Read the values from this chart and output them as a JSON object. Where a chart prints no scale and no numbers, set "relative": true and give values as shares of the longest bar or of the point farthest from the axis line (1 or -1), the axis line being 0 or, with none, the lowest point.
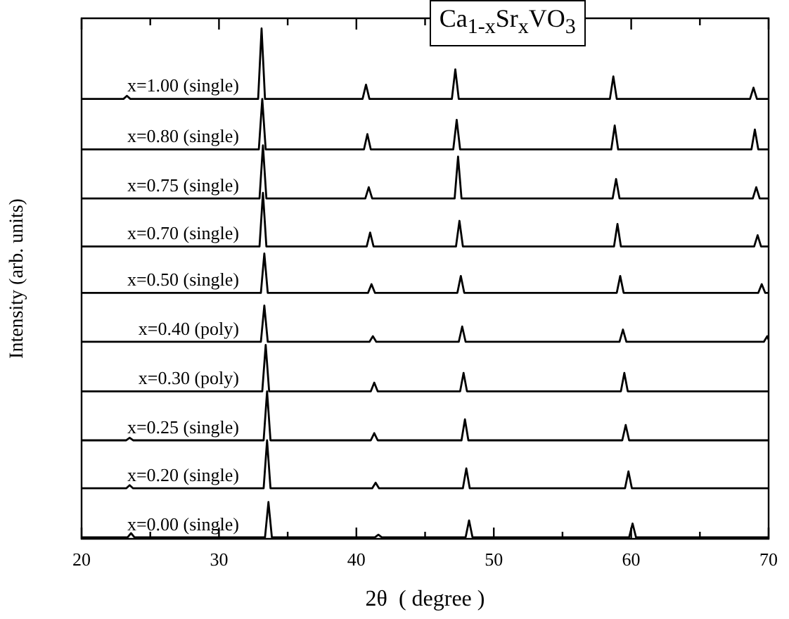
{
  "chart_data": {
    "type": "line",
    "title": "Ca$_{1-x}$Sr$_{x}$VO$_{3}$",
    "xlabel": "2θ  ( degree )",
    "ylabel": "Intensity (arb. units)",
    "relative": true,
    "xlim": [
      20,
      70
    ],
    "xticks": [
      20,
      {
        "value": 25,
        "label": null
      },
      30,
      {
        "value": 35,
        "label": null
      },
      40,
      {
        "value": 45,
        "label": null
      },
      50,
      {
        "value": 55,
        "label": null
      },
      60,
      {
        "value": 65,
        "label": null
      },
      70
    ],
    "grid": false,
    "marker": "none",
    "line_style": "solid",
    "series": [
      {
        "name": "x=1.00 (single)",
        "color": "#000000",
        "x": [
          20,
          23.05,
          23.3,
          23.55,
          32.85,
          33.1,
          33.35,
          40.45,
          40.7,
          40.95,
          46.95,
          47.2,
          47.45,
          58.45,
          58.7,
          58.95,
          68.65,
          68.9,
          69.15,
          70
        ],
        "values": [
          0.862,
          0.862,
          0.868,
          0.862,
          0.862,
          1.0,
          0.862,
          0.862,
          0.89,
          0.862,
          0.862,
          0.92,
          0.862,
          0.862,
          0.906,
          0.862,
          0.862,
          0.884,
          0.862,
          0.862
        ]
      },
      {
        "name": "x=0.80 (single)",
        "color": "#000000",
        "x": [
          20,
          32.9,
          33.15,
          33.4,
          40.55,
          40.8,
          41.05,
          47.05,
          47.3,
          47.55,
          58.55,
          58.8,
          59.05,
          68.75,
          69,
          69.25,
          70
        ],
        "values": [
          0.763,
          0.763,
          0.862,
          0.763,
          0.763,
          0.793,
          0.763,
          0.763,
          0.821,
          0.763,
          0.763,
          0.81,
          0.763,
          0.763,
          0.802,
          0.763,
          0.763
        ]
      },
      {
        "name": "x=0.75 (single)",
        "color": "#000000",
        "x": [
          20,
          32.95,
          33.2,
          33.45,
          40.65,
          40.9,
          41.15,
          47.15,
          47.4,
          47.65,
          58.65,
          58.9,
          59.15,
          68.85,
          69.1,
          69.35,
          70
        ],
        "values": [
          0.667,
          0.667,
          0.771,
          0.667,
          0.667,
          0.689,
          0.667,
          0.667,
          0.749,
          0.667,
          0.667,
          0.705,
          0.667,
          0.667,
          0.689,
          0.667,
          0.667
        ]
      },
      {
        "name": "x=0.70 (single)",
        "color": "#000000",
        "x": [
          20,
          32.95,
          33.2,
          33.45,
          40.75,
          41,
          41.25,
          47.25,
          47.5,
          47.75,
          58.75,
          59,
          59.25,
          68.95,
          69.2,
          69.45,
          70
        ],
        "values": [
          0.573,
          0.573,
          0.678,
          0.573,
          0.573,
          0.6,
          0.573,
          0.573,
          0.623,
          0.573,
          0.573,
          0.617,
          0.573,
          0.573,
          0.595,
          0.573,
          0.573
        ]
      },
      {
        "name": "x=0.50 (single)",
        "color": "#000000",
        "x": [
          20,
          33.05,
          33.3,
          33.55,
          40.85,
          41.1,
          41.35,
          47.35,
          47.6,
          47.85,
          58.95,
          59.2,
          59.45,
          69.25,
          69.5,
          69.75,
          70
        ],
        "values": [
          0.482,
          0.482,
          0.559,
          0.482,
          0.482,
          0.499,
          0.482,
          0.482,
          0.515,
          0.482,
          0.482,
          0.515,
          0.482,
          0.482,
          0.499,
          0.482,
          0.482
        ]
      },
      {
        "name": "x=0.40 (poly)",
        "color": "#000000",
        "x": [
          20,
          33.05,
          33.3,
          33.55,
          40.95,
          41.2,
          41.45,
          47.45,
          47.7,
          47.95,
          59.15,
          59.4,
          59.65,
          69.65,
          69.9,
          70
        ],
        "values": [
          0.386,
          0.386,
          0.457,
          0.386,
          0.386,
          0.397,
          0.386,
          0.386,
          0.416,
          0.386,
          0.386,
          0.41,
          0.386,
          0.386,
          0.397,
          0.39
        ]
      },
      {
        "name": "x=0.30 (poly)",
        "color": "#000000",
        "x": [
          20,
          33.15,
          33.4,
          33.65,
          41.05,
          41.3,
          41.55,
          47.55,
          47.8,
          48.05,
          59.25,
          59.5,
          59.75,
          70
        ],
        "values": [
          0.289,
          0.289,
          0.38,
          0.289,
          0.289,
          0.306,
          0.289,
          0.289,
          0.325,
          0.289,
          0.289,
          0.325,
          0.289,
          0.289
        ]
      },
      {
        "name": "x=0.25 (single)",
        "color": "#000000",
        "x": [
          20,
          23.25,
          23.5,
          23.75,
          33.25,
          33.5,
          33.75,
          41.05,
          41.3,
          41.55,
          47.65,
          47.9,
          48.15,
          59.35,
          59.6,
          59.85,
          70
        ],
        "values": [
          0.193,
          0.193,
          0.198,
          0.193,
          0.193,
          0.289,
          0.193,
          0.193,
          0.207,
          0.193,
          0.193,
          0.234,
          0.193,
          0.193,
          0.223,
          0.193,
          0.193
        ]
      },
      {
        "name": "x=0.20 (single)",
        "color": "#000000",
        "x": [
          20,
          23.25,
          23.5,
          23.75,
          33.25,
          33.5,
          33.75,
          41.15,
          41.4,
          41.65,
          47.75,
          48,
          48.25,
          59.55,
          59.8,
          60.05,
          70
        ],
        "values": [
          0.099,
          0.099,
          0.105,
          0.099,
          0.099,
          0.193,
          0.099,
          0.099,
          0.11,
          0.099,
          0.099,
          0.138,
          0.099,
          0.099,
          0.132,
          0.099,
          0.099
        ]
      },
      {
        "name": "x=0.00 (single)",
        "color": "#000000",
        "x": [
          20,
          23.35,
          23.6,
          23.85,
          33.35,
          33.6,
          33.85,
          41.35,
          41.6,
          41.85,
          47.95,
          48.2,
          48.45,
          59.85,
          60.1,
          60.35,
          70
        ],
        "values": [
          0.003,
          0.003,
          0.011,
          0.003,
          0.003,
          0.072,
          0.003,
          0.003,
          0.008,
          0.003,
          0.003,
          0.036,
          0.003,
          0.003,
          0.03,
          0.003,
          0.003
        ]
      }
    ]
  }
}
